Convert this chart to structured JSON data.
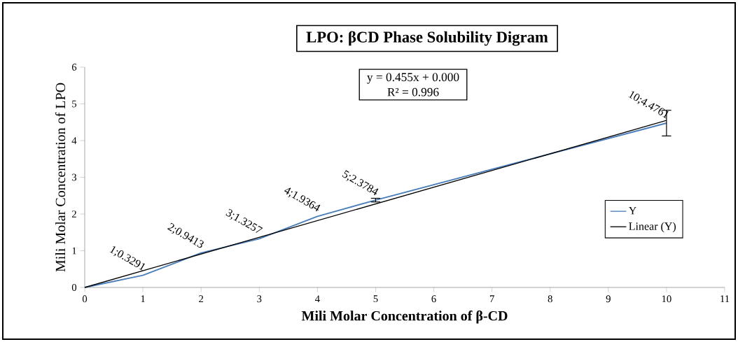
{
  "chart_data": {
    "type": "line",
    "title": "LPO: βCD Phase Solubility Digram",
    "xlabel": "Mili Molar Concentration of β-CD",
    "ylabel": "Mili Molar Concentration of LPO",
    "annotations": [
      "y = 0.455x + 0.000",
      "R² = 0.996"
    ],
    "x": [
      0,
      1,
      2,
      3,
      4,
      5,
      10
    ],
    "series": [
      {
        "name": "Y",
        "color": "#4a7ebb",
        "values": [
          0,
          0.3291,
          0.9413,
          1.3257,
          1.9364,
          2.3784,
          4.4761
        ],
        "errors": [
          null,
          null,
          null,
          null,
          null,
          0.05,
          0.35
        ],
        "value_labels": [
          null,
          "1;0.3291",
          "2;0.9413",
          "3;1.3257",
          "4;1.9364",
          "5;2.3784",
          "10;4.4761"
        ]
      },
      {
        "name": "Linear (Y)",
        "type": "line",
        "color": "#000000",
        "x": [
          0,
          10
        ],
        "values": [
          0,
          4.55
        ]
      }
    ],
    "xlim": [
      0,
      11
    ],
    "xticks": [
      0,
      1,
      2,
      3,
      4,
      5,
      6,
      7,
      8,
      9,
      10,
      11
    ],
    "ylim": [
      0,
      6
    ],
    "yticks": [
      0,
      1,
      2,
      3,
      4,
      5,
      6
    ],
    "grid": false,
    "legend": "right",
    "marker": "none",
    "line_style": "solid"
  }
}
